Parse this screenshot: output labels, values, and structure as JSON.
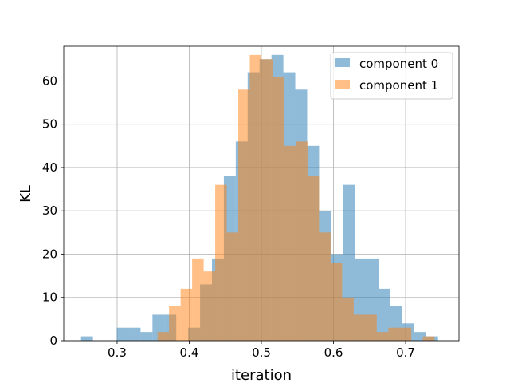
{
  "chart_data": {
    "type": "bar",
    "subtype": "overlapping histogram",
    "title": "",
    "xlabel": "iteration",
    "ylabel": "KL",
    "xlim": [
      0.226,
      0.774
    ],
    "ylim": [
      0,
      68
    ],
    "x_ticks": [
      "0.3",
      "0.4",
      "0.5",
      "0.6",
      "0.7"
    ],
    "y_ticks": [
      "0",
      "10",
      "20",
      "30",
      "40",
      "50",
      "60"
    ],
    "grid": true,
    "legend_position": "upper right",
    "series": [
      {
        "name": "component 0",
        "color": "#1f77b4",
        "opacity": 0.5,
        "bin_start": 0.25,
        "bin_width": 0.0165,
        "counts": [
          1,
          0,
          0,
          3,
          3,
          2,
          6,
          6,
          0,
          3,
          13,
          19,
          38,
          46,
          62,
          65,
          66,
          62,
          58,
          45,
          30,
          20,
          36,
          19,
          19,
          12,
          8,
          4,
          2,
          1
        ]
      },
      {
        "name": "component 1",
        "color": "#ff7f0e",
        "opacity": 0.5,
        "bin_start": 0.356,
        "bin_width": 0.016,
        "counts": [
          2,
          8,
          12,
          19,
          16,
          36,
          25,
          58,
          66,
          65,
          61,
          45,
          46,
          38,
          25,
          18,
          10,
          6,
          6,
          2,
          3,
          3,
          0,
          1
        ],
        "gaps_note": ""
      }
    ]
  }
}
